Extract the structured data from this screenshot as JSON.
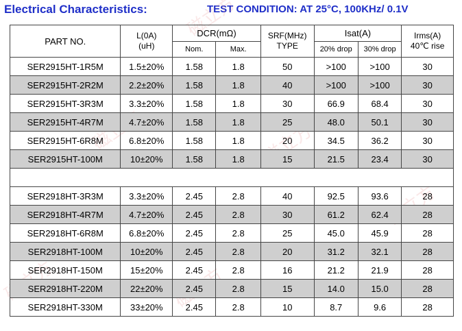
{
  "header": {
    "title": "Electrical Characteristics:",
    "condition": "TEST CONDITION:  AT 25°C, 100KHz/ 0.1V"
  },
  "table": {
    "columns": {
      "part_no": "PART NO.",
      "l_line1": "L(0A)",
      "l_line2": "(uH)",
      "dcr": "DCR(mΩ)",
      "dcr_nom": "Nom.",
      "dcr_max": "Max.",
      "srf_line1": "SRF(MHz)",
      "srf_line2": "TYPE",
      "isat": "Isat(A)",
      "isat_20": "20% drop",
      "isat_30": "30% drop",
      "irms_line1": "Irms(A)",
      "irms_line2": "40℃ rise"
    },
    "rows": [
      {
        "part": "SER2915HT-1R5M",
        "l": "1.5±20%",
        "nom": "1.58",
        "max": "1.8",
        "srf": "50",
        "i20": ">100",
        "i30": ">100",
        "irms": "30"
      },
      {
        "part": "SER2915HT-2R2M",
        "l": "2.2±20%",
        "nom": "1.58",
        "max": "1.8",
        "srf": "40",
        "i20": ">100",
        "i30": ">100",
        "irms": "30"
      },
      {
        "part": "SER2915HT-3R3M",
        "l": "3.3±20%",
        "nom": "1.58",
        "max": "1.8",
        "srf": "30",
        "i20": "66.9",
        "i30": "68.4",
        "irms": "30"
      },
      {
        "part": "SER2915HT-4R7M",
        "l": "4.7±20%",
        "nom": "1.58",
        "max": "1.8",
        "srf": "25",
        "i20": "48.0",
        "i30": "50.1",
        "irms": "30"
      },
      {
        "part": "SER2915HT-6R8M",
        "l": "6.8±20%",
        "nom": "1.58",
        "max": "1.8",
        "srf": "20",
        "i20": "34.5",
        "i30": "36.2",
        "irms": "30"
      },
      {
        "part": "SER2915HT-100M",
        "l": "10±20%",
        "nom": "1.58",
        "max": "1.8",
        "srf": "15",
        "i20": "21.5",
        "i30": "23.4",
        "irms": "30"
      },
      {
        "part": "SER2918HT-3R3M",
        "l": "3.3±20%",
        "nom": "2.45",
        "max": "2.8",
        "srf": "40",
        "i20": "92.5",
        "i30": "93.6",
        "irms": "28"
      },
      {
        "part": "SER2918HT-4R7M",
        "l": "4.7±20%",
        "nom": "2.45",
        "max": "2.8",
        "srf": "30",
        "i20": "61.2",
        "i30": "62.4",
        "irms": "28"
      },
      {
        "part": "SER2918HT-6R8M",
        "l": "6.8±20%",
        "nom": "2.45",
        "max": "2.8",
        "srf": "25",
        "i20": "45.0",
        "i30": "45.9",
        "irms": "28"
      },
      {
        "part": "SER2918HT-100M",
        "l": "10±20%",
        "nom": "2.45",
        "max": "2.8",
        "srf": "20",
        "i20": "31.2",
        "i30": "32.1",
        "irms": "28"
      },
      {
        "part": "SER2918HT-150M",
        "l": "15±20%",
        "nom": "2.45",
        "max": "2.8",
        "srf": "16",
        "i20": "21.2",
        "i30": "21.9",
        "irms": "28"
      },
      {
        "part": "SER2918HT-220M",
        "l": "22±20%",
        "nom": "2.45",
        "max": "2.8",
        "srf": "15",
        "i20": "14.0",
        "i30": "15.0",
        "irms": "28"
      },
      {
        "part": "SER2918HT-330M",
        "l": "33±20%",
        "nom": "2.45",
        "max": "2.8",
        "srf": "10",
        "i20": "8.7",
        "i30": "9.6",
        "irms": "28"
      }
    ]
  },
  "watermark": {
    "text": "磁立方",
    "color": "#e69696"
  }
}
